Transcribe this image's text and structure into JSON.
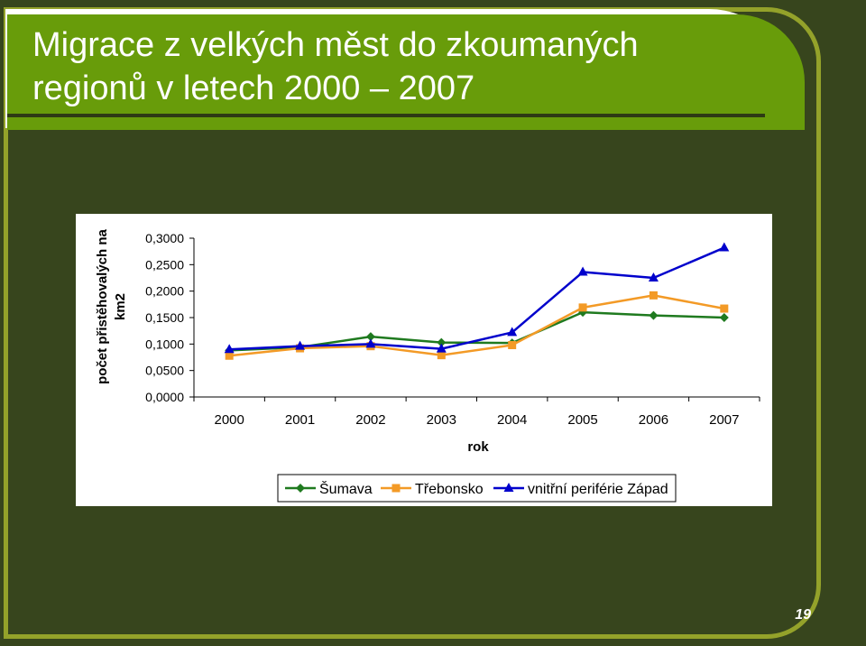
{
  "slide": {
    "title": "Migrace z velkých měst do zkoumaných regionů v letech 2000 – 2007",
    "page_number": "19"
  },
  "colors": {
    "background": "#37451d",
    "title_bar": "#689c0a",
    "frame_border": "#94a22a"
  },
  "chart_data": {
    "type": "line",
    "title": "",
    "xlabel": "rok",
    "ylabel": "počet přistěhovalých na km2",
    "x": [
      "2000",
      "2001",
      "2002",
      "2003",
      "2004",
      "2005",
      "2006",
      "2007"
    ],
    "ylim": [
      0,
      0.3
    ],
    "yticks": [
      "0,0000",
      "0,0500",
      "0,1000",
      "0,1500",
      "0,2000",
      "0,2500",
      "0,3000"
    ],
    "grid": false,
    "legend_position": "bottom",
    "series": [
      {
        "name": "Šumava",
        "color": "#1f7a1f",
        "marker": "diamond",
        "values": [
          0.088,
          0.094,
          0.114,
          0.103,
          0.102,
          0.16,
          0.154,
          0.15
        ]
      },
      {
        "name": "Třebonsko",
        "color": "#f39a26",
        "marker": "square",
        "values": [
          0.078,
          0.092,
          0.096,
          0.079,
          0.098,
          0.169,
          0.192,
          0.167
        ]
      },
      {
        "name": "vnitřní periférie Západ",
        "color": "#0000cc",
        "marker": "triangle",
        "values": [
          0.09,
          0.096,
          0.1,
          0.091,
          0.122,
          0.236,
          0.225,
          0.282
        ]
      }
    ]
  }
}
